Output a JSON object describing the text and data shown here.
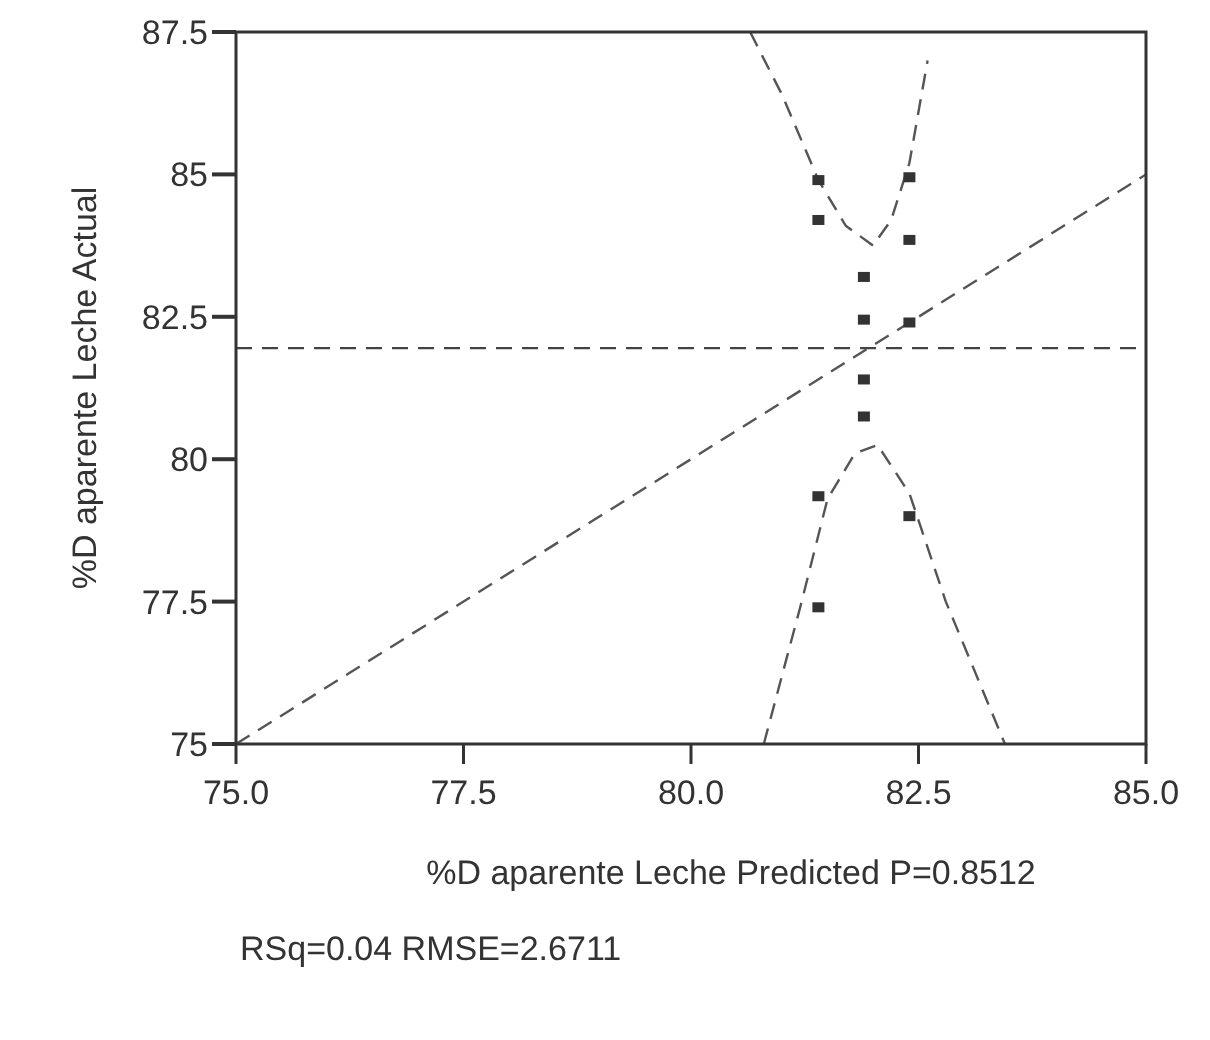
{
  "chart_data": {
    "type": "scatter",
    "xlabel": "%D aparente Leche Predicted P=0.8512",
    "ylabel": "%D aparente Leche Actual",
    "annotations": [
      "RSq=0.04 RMSE=2.6711"
    ],
    "xlim": [
      75,
      85
    ],
    "xticks": [
      {
        "value": 75,
        "label": "75.0"
      },
      {
        "value": 77.5,
        "label": "77.5"
      },
      {
        "value": 80,
        "label": "80.0"
      },
      {
        "value": 82.5,
        "label": "82.5"
      },
      {
        "value": 85,
        "label": "85.0"
      }
    ],
    "ylim": [
      75,
      87.5
    ],
    "yticks": [
      75,
      77.5,
      80,
      82.5,
      85,
      87.5
    ],
    "grid": false,
    "ref_lines": [
      {
        "axis": "y",
        "value": 81.95,
        "color": "#444444",
        "line_style": "dashed"
      }
    ],
    "series": [
      {
        "color": "#333333",
        "marker": "square",
        "x": [
          81.4,
          81.4,
          82.4,
          82.4,
          81.9,
          81.9,
          82.4,
          81.9,
          81.9,
          81.4,
          82.4,
          81.4
        ],
        "values": [
          84.9,
          84.2,
          84.95,
          83.85,
          83.2,
          82.45,
          82.4,
          81.4,
          80.75,
          79.35,
          79.0,
          77.4
        ]
      },
      {
        "type": "line",
        "color": "#555555",
        "line_style": "dashed",
        "x": [
          75,
          85
        ],
        "values": [
          75,
          85
        ]
      },
      {
        "type": "line",
        "color": "#555555",
        "line_style": "dashed",
        "x": [
          80.65,
          81.0,
          81.4,
          81.7,
          82.0,
          82.2,
          82.4,
          82.6
        ],
        "values": [
          87.5,
          86.4,
          84.9,
          84.1,
          83.75,
          84.2,
          85.2,
          87.0
        ]
      },
      {
        "type": "line",
        "color": "#555555",
        "line_style": "dashed",
        "x": [
          80.8,
          81.2,
          81.5,
          81.8,
          82.05,
          82.4,
          82.8,
          83.45
        ],
        "values": [
          75,
          77.4,
          79.3,
          80.1,
          80.25,
          79.4,
          77.5,
          75
        ]
      }
    ]
  }
}
